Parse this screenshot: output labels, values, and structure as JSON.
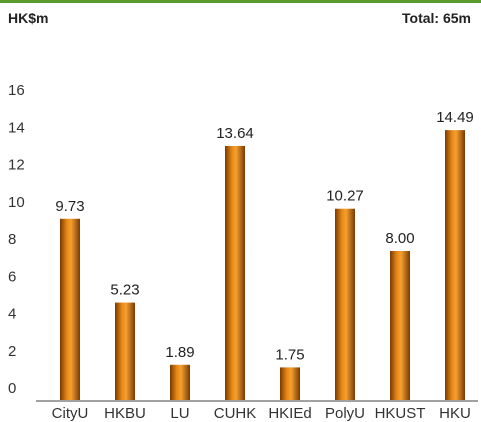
{
  "header": {
    "unit": "HK$m",
    "total": "Total: 65m"
  },
  "chart_data": {
    "type": "bar",
    "categories": [
      "CityU",
      "HKBU",
      "LU",
      "CUHK",
      "HKIEd",
      "PolyU",
      "HKUST",
      "HKU"
    ],
    "values": [
      9.73,
      5.23,
      1.89,
      13.64,
      1.75,
      10.27,
      8.0,
      14.49
    ],
    "value_labels": [
      "9.73",
      "5.23",
      "1.89",
      "13.64",
      "1.75",
      "10.27",
      "8.00",
      "14.49"
    ],
    "yticks": [
      "0",
      "2",
      "4",
      "6",
      "8",
      "10",
      "12",
      "14",
      "16"
    ],
    "ylim": [
      0,
      16
    ],
    "grid": false,
    "bar_color": "#c8700a"
  }
}
